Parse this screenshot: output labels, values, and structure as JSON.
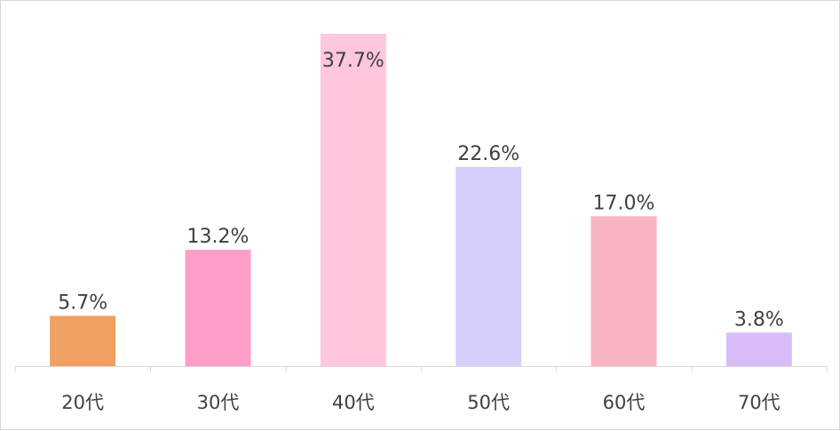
{
  "chart_data": {
    "type": "bar",
    "title": "",
    "xlabel": "",
    "ylabel": "",
    "categories": [
      "20代",
      "30代",
      "40代",
      "50代",
      "60代",
      "70代"
    ],
    "values": [
      5.7,
      13.2,
      37.7,
      22.6,
      17.0,
      3.8
    ],
    "value_labels": [
      "5.7%",
      "13.2%",
      "37.7%",
      "22.6%",
      "17.0%",
      "3.8%"
    ],
    "colors": [
      "#F0A060",
      "#FF9EC8",
      "#FFC6DE",
      "#D4CEFA",
      "#F8B4C2",
      "#D8BCF8"
    ],
    "ylim": [
      0,
      37.7
    ],
    "grid": false,
    "legend": "none"
  }
}
